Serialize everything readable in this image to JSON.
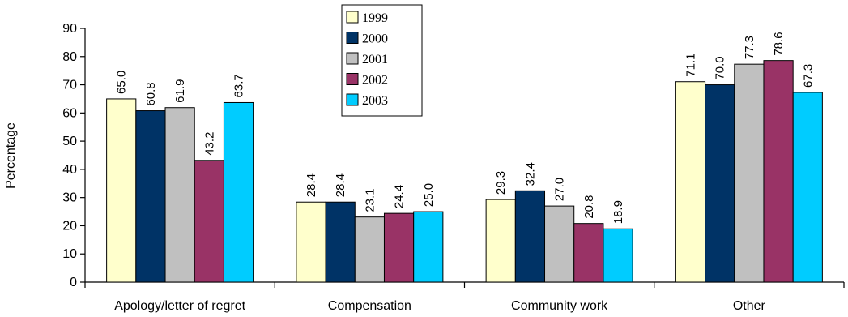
{
  "chart_data": {
    "type": "bar",
    "title": "",
    "xlabel": "",
    "ylabel": "Percentage",
    "ylim": [
      0,
      90
    ],
    "yticks": [
      0,
      10,
      20,
      30,
      40,
      50,
      60,
      70,
      80,
      90
    ],
    "grid": false,
    "legend_position": "top-center",
    "categories": [
      "Apology/letter of regret",
      "Compensation",
      "Community work",
      "Other"
    ],
    "series": [
      {
        "name": "1999",
        "color": "#FFFFCC",
        "values": [
          65.0,
          28.4,
          29.3,
          71.1
        ],
        "labels": [
          "65.0",
          "28.4",
          "29.3",
          "71.1"
        ]
      },
      {
        "name": "2000",
        "color": "#003366",
        "values": [
          60.8,
          28.4,
          32.4,
          70.0
        ],
        "labels": [
          "60.8",
          "28.4",
          "32.4",
          "70.0"
        ]
      },
      {
        "name": "2001",
        "color": "#C0C0C0",
        "values": [
          61.9,
          23.1,
          27.0,
          77.3
        ],
        "labels": [
          "61.9",
          "23.1",
          "27.0",
          "77.3"
        ]
      },
      {
        "name": "2002",
        "color": "#993366",
        "values": [
          43.2,
          24.4,
          20.8,
          78.6
        ],
        "labels": [
          "43.2",
          "24.4",
          "20.8",
          "78.6"
        ]
      },
      {
        "name": "2003",
        "color": "#00CCFF",
        "values": [
          63.7,
          25.0,
          18.9,
          67.3
        ],
        "labels": [
          "63.7",
          "25.0",
          "18.9",
          "67.3"
        ]
      }
    ]
  }
}
